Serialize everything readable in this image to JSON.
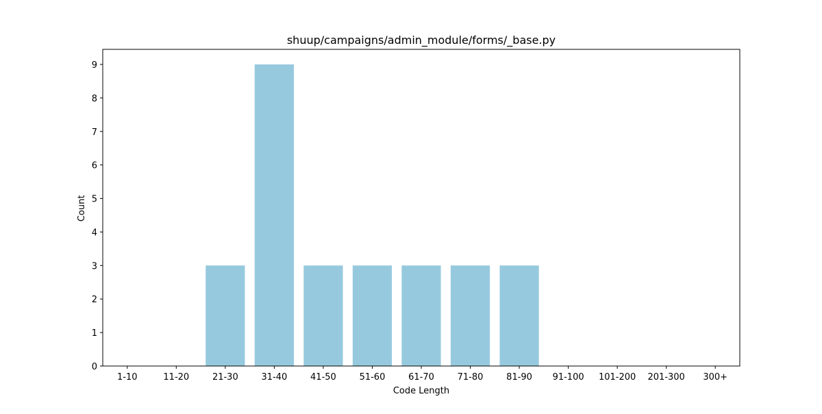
{
  "chart_data": {
    "type": "bar",
    "title": "shuup/campaigns/admin_module/forms/_base.py",
    "xlabel": "Code Length",
    "ylabel": "Count",
    "categories": [
      "1-10",
      "11-20",
      "21-30",
      "31-40",
      "41-50",
      "51-60",
      "61-70",
      "71-80",
      "81-90",
      "91-100",
      "101-200",
      "201-300",
      "300+"
    ],
    "values": [
      0,
      0,
      3,
      9,
      3,
      3,
      3,
      3,
      3,
      0,
      0,
      0,
      0
    ],
    "ylim": [
      0,
      9.45
    ],
    "yticks": [
      0,
      1,
      2,
      3,
      4,
      5,
      6,
      7,
      8,
      9
    ],
    "grid": false,
    "bar_color": "#96c9de"
  }
}
